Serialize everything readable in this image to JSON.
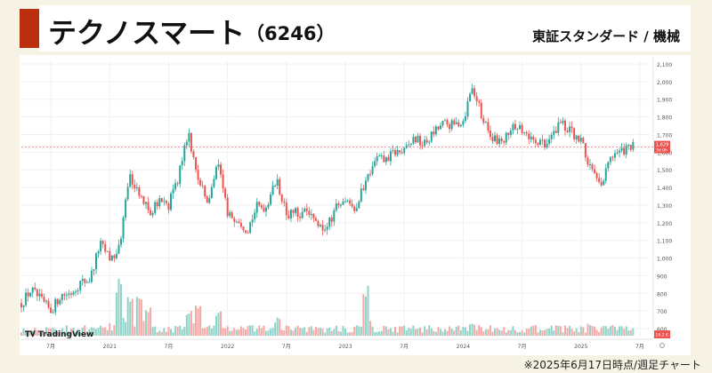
{
  "header": {
    "company_name": "テクノスマート",
    "company_code": "（6246）",
    "market_info": "東証スタンダード / 機械"
  },
  "footnote": "※2025年6月17日時点/週足チャート",
  "watermark": "TradingView",
  "colors": {
    "accent": "#b92e0f",
    "up": "#26a69a",
    "down": "#ef5350",
    "up_volume": "#8fd3c9",
    "down_volume": "#f5a9a6",
    "current_price_line": "#ef5350"
  },
  "chart_data": {
    "type": "candlestick",
    "interval": "weekly",
    "y_axis": {
      "ticks": [
        600,
        700,
        800,
        900,
        1000,
        1100,
        1200,
        1300,
        1400,
        1500,
        1600,
        1700,
        1800,
        1900,
        2000,
        2100
      ],
      "tick_labels": [
        "600",
        "700",
        "800",
        "900",
        "1,000",
        "1,100",
        "1,200",
        "1,300",
        "1,400",
        "1,500",
        "1,600",
        "1,700",
        "1,800",
        "1,900",
        "2,000",
        "2,100"
      ],
      "range": [
        560,
        2120
      ],
      "position": "right"
    },
    "x_axis": {
      "ticks": [
        {
          "label": "7月",
          "date": "2020-07"
        },
        {
          "label": "2021",
          "date": "2021-01"
        },
        {
          "label": "7月",
          "date": "2021-07"
        },
        {
          "label": "2022",
          "date": "2022-01"
        },
        {
          "label": "7月",
          "date": "2022-07"
        },
        {
          "label": "2023",
          "date": "2023-01"
        },
        {
          "label": "7月",
          "date": "2023-07"
        },
        {
          "label": "2024",
          "date": "2024-01"
        },
        {
          "label": "7月",
          "date": "2024-07"
        },
        {
          "label": "2025",
          "date": "2025-01"
        },
        {
          "label": "7月",
          "date": "2025-07"
        }
      ],
      "range": [
        "2020-04",
        "2025-08"
      ]
    },
    "current_price": {
      "value": 1629,
      "label": "1,629",
      "sub_label": "3d 0h"
    },
    "volume_label": "14.2 K",
    "price_path": [
      [
        "2020-04",
        745
      ],
      [
        "2020-05",
        820
      ],
      [
        "2020-06",
        760
      ],
      [
        "2020-07",
        700
      ],
      [
        "2020-08",
        790
      ],
      [
        "2020-09",
        800
      ],
      [
        "2020-10",
        860
      ],
      [
        "2020-11",
        880
      ],
      [
        "2020-12",
        1080
      ],
      [
        "2021-01",
        1000
      ],
      [
        "2021-02",
        1050
      ],
      [
        "2021-03",
        1470
      ],
      [
        "2021-04",
        1380
      ],
      [
        "2021-05",
        1260
      ],
      [
        "2021-06",
        1320
      ],
      [
        "2021-07",
        1300
      ],
      [
        "2021-08",
        1460
      ],
      [
        "2021-09",
        1720
      ],
      [
        "2021-10",
        1430
      ],
      [
        "2021-11",
        1320
      ],
      [
        "2021-12",
        1560
      ],
      [
        "2022-01",
        1240
      ],
      [
        "2022-02",
        1230
      ],
      [
        "2022-03",
        1160
      ],
      [
        "2022-04",
        1290
      ],
      [
        "2022-05",
        1290
      ],
      [
        "2022-06",
        1450
      ],
      [
        "2022-07",
        1240
      ],
      [
        "2022-08",
        1260
      ],
      [
        "2022-09",
        1250
      ],
      [
        "2022-10",
        1200
      ],
      [
        "2022-11",
        1150
      ],
      [
        "2022-12",
        1290
      ],
      [
        "2023-01",
        1340
      ],
      [
        "2023-02",
        1280
      ],
      [
        "2023-03",
        1430
      ],
      [
        "2023-04",
        1570
      ],
      [
        "2023-05",
        1550
      ],
      [
        "2023-06",
        1600
      ],
      [
        "2023-07",
        1600
      ],
      [
        "2023-08",
        1680
      ],
      [
        "2023-09",
        1640
      ],
      [
        "2023-10",
        1710
      ],
      [
        "2023-11",
        1760
      ],
      [
        "2023-12",
        1750
      ],
      [
        "2024-01",
        1780
      ],
      [
        "2024-02",
        1970
      ],
      [
        "2024-03",
        1780
      ],
      [
        "2024-04",
        1690
      ],
      [
        "2024-05",
        1640
      ],
      [
        "2024-06",
        1760
      ],
      [
        "2024-07",
        1720
      ],
      [
        "2024-08",
        1660
      ],
      [
        "2024-09",
        1640
      ],
      [
        "2024-10",
        1690
      ],
      [
        "2024-11",
        1770
      ],
      [
        "2024-12",
        1720
      ],
      [
        "2025-01",
        1660
      ],
      [
        "2025-02",
        1500
      ],
      [
        "2025-03",
        1390
      ],
      [
        "2025-04",
        1580
      ],
      [
        "2025-05",
        1600
      ],
      [
        "2025-06",
        1629
      ]
    ],
    "volume_spikes": [
      [
        "2021-02",
        0.95
      ],
      [
        "2021-03",
        0.7
      ],
      [
        "2021-04",
        0.8
      ],
      [
        "2021-05",
        0.5
      ],
      [
        "2021-09",
        0.45
      ],
      [
        "2021-10",
        0.6
      ],
      [
        "2021-12",
        0.4
      ],
      [
        "2022-06",
        0.3
      ],
      [
        "2023-03",
        0.85
      ],
      [
        "2024-02",
        0.25
      ],
      [
        "2025-02",
        0.2
      ]
    ]
  }
}
